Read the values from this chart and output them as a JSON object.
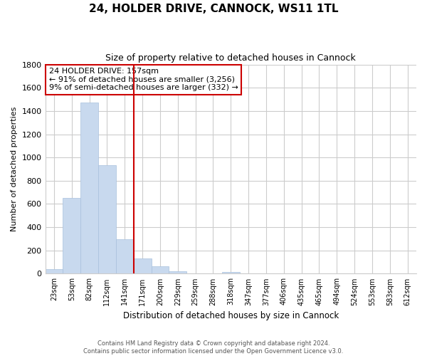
{
  "title": "24, HOLDER DRIVE, CANNOCK, WS11 1TL",
  "subtitle": "Size of property relative to detached houses in Cannock",
  "xlabel": "Distribution of detached houses by size in Cannock",
  "ylabel": "Number of detached properties",
  "bar_color": "#c8d9ee",
  "bar_edgecolor": "#a8c0dd",
  "bin_labels": [
    "23sqm",
    "53sqm",
    "82sqm",
    "112sqm",
    "141sqm",
    "171sqm",
    "200sqm",
    "229sqm",
    "259sqm",
    "288sqm",
    "318sqm",
    "347sqm",
    "377sqm",
    "406sqm",
    "435sqm",
    "465sqm",
    "494sqm",
    "524sqm",
    "553sqm",
    "583sqm",
    "612sqm"
  ],
  "bar_heights": [
    40,
    650,
    1470,
    935,
    295,
    130,
    65,
    22,
    0,
    0,
    14,
    0,
    0,
    0,
    0,
    0,
    0,
    0,
    0,
    0,
    0
  ],
  "ylim": [
    0,
    1800
  ],
  "yticks": [
    0,
    200,
    400,
    600,
    800,
    1000,
    1200,
    1400,
    1600,
    1800
  ],
  "vline_x": 4.5,
  "vline_color": "#cc0000",
  "annotation_title": "24 HOLDER DRIVE: 157sqm",
  "annotation_line1": "← 91% of detached houses are smaller (3,256)",
  "annotation_line2": "9% of semi-detached houses are larger (332) →",
  "footer_line1": "Contains HM Land Registry data © Crown copyright and database right 2024.",
  "footer_line2": "Contains public sector information licensed under the Open Government Licence v3.0.",
  "background_color": "#ffffff",
  "grid_color": "#cccccc"
}
